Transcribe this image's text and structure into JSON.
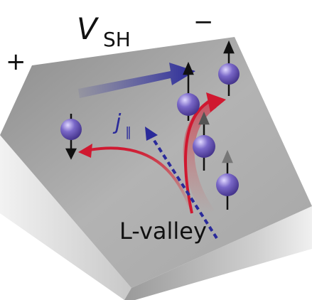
{
  "labels": {
    "voltage": "V",
    "voltage_subscript": "SH",
    "plus": "+",
    "minus": "−",
    "current": "j",
    "current_subscript": "∥",
    "valley": "L-valley"
  }
}
